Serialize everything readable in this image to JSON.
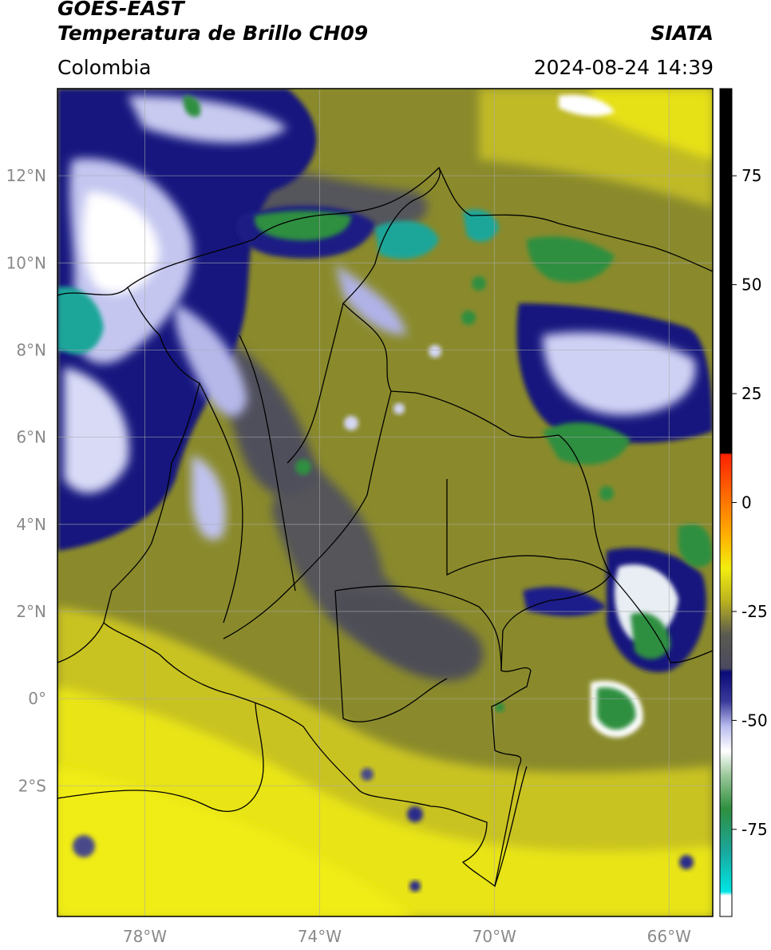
{
  "header": {
    "satellite": "GOES-EAST",
    "product": "Temperatura de Brillo CH09",
    "brand": "SIATA",
    "region": "Colombia",
    "timestamp": "2024-08-24 14:39"
  },
  "map": {
    "lon_range": [
      -80,
      -65
    ],
    "lat_range": [
      -5,
      14
    ],
    "lat_ticks": [
      {
        "value": 12,
        "label": "12°N"
      },
      {
        "value": 10,
        "label": "10°N"
      },
      {
        "value": 8,
        "label": "8°N"
      },
      {
        "value": 6,
        "label": "6°N"
      },
      {
        "value": 4,
        "label": "4°N"
      },
      {
        "value": 2,
        "label": "2°N"
      },
      {
        "value": 0,
        "label": "0°"
      },
      {
        "value": -2,
        "label": "2°S"
      }
    ],
    "lon_ticks": [
      {
        "value": -78,
        "label": "78°W"
      },
      {
        "value": -74,
        "label": "74°W"
      },
      {
        "value": -70,
        "label": "70°W"
      },
      {
        "value": -66,
        "label": "66°W"
      }
    ],
    "gridlines": true
  },
  "colorbar": {
    "range": [
      -95,
      95
    ],
    "ticks": [
      {
        "value": 75,
        "label": "75"
      },
      {
        "value": 50,
        "label": "50"
      },
      {
        "value": 25,
        "label": "25"
      },
      {
        "value": 0,
        "label": "0"
      },
      {
        "value": -25,
        "label": "-25"
      },
      {
        "value": -50,
        "label": "-50"
      },
      {
        "value": -75,
        "label": "-75"
      }
    ],
    "colors": {
      "warm": "#000000",
      "red": "#ff2200",
      "orange": "#ff9900",
      "yellow": "#f2ee10",
      "olive": "#8a8a2a",
      "gray": "#4f4f55",
      "navy": "#0a0a7a",
      "lightblue": "#b8bbee",
      "white": "#ffffff",
      "green": "#2f8f3f",
      "teal": "#1aa69a",
      "cyan": "#00e5e5"
    }
  }
}
